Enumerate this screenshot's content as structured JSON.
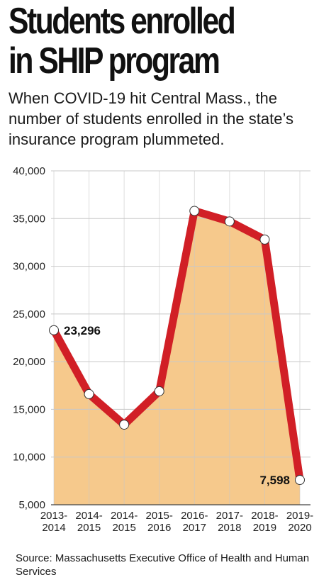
{
  "header": {
    "title_line1": "Students enrolled",
    "title_line2": "in SHIP program",
    "subtitle": "When COVID-19 hit Central Mass., the number of students enrolled in the state’s insurance program plummeted."
  },
  "footer": {
    "source": "Source: Massachusetts Executive Office of Health and Human Services"
  },
  "colors": {
    "line": "#d11f26",
    "fill": "#f6c98c",
    "grid": "#c8c8c8",
    "axis": "#444444"
  },
  "chart_data": {
    "type": "area",
    "title": "Students enrolled in SHIP program",
    "xlabel": "",
    "ylabel": "",
    "grid": true,
    "legend": "none",
    "ylim": [
      5000,
      40000
    ],
    "yticks": [
      5000,
      10000,
      15000,
      20000,
      25000,
      30000,
      35000,
      40000
    ],
    "ytick_labels": [
      "5,000",
      "10,000",
      "15,000",
      "20,000",
      "25,000",
      "30,000",
      "35,000",
      "40,000"
    ],
    "categories": [
      [
        "2013-",
        "2014"
      ],
      [
        "2014-",
        "2015"
      ],
      [
        "2014-",
        "2015"
      ],
      [
        "2015-",
        "2016"
      ],
      [
        "2016-",
        "2017"
      ],
      [
        "2017-",
        "2018"
      ],
      [
        "2018-",
        "2019"
      ],
      [
        "2019-",
        "2020"
      ]
    ],
    "values": [
      23296,
      16600,
      13400,
      16900,
      35800,
      34700,
      32800,
      7598
    ],
    "data_labels": [
      {
        "index": 0,
        "text": "23,296",
        "position": "right"
      },
      {
        "index": 7,
        "text": "7,598",
        "position": "left"
      }
    ]
  }
}
